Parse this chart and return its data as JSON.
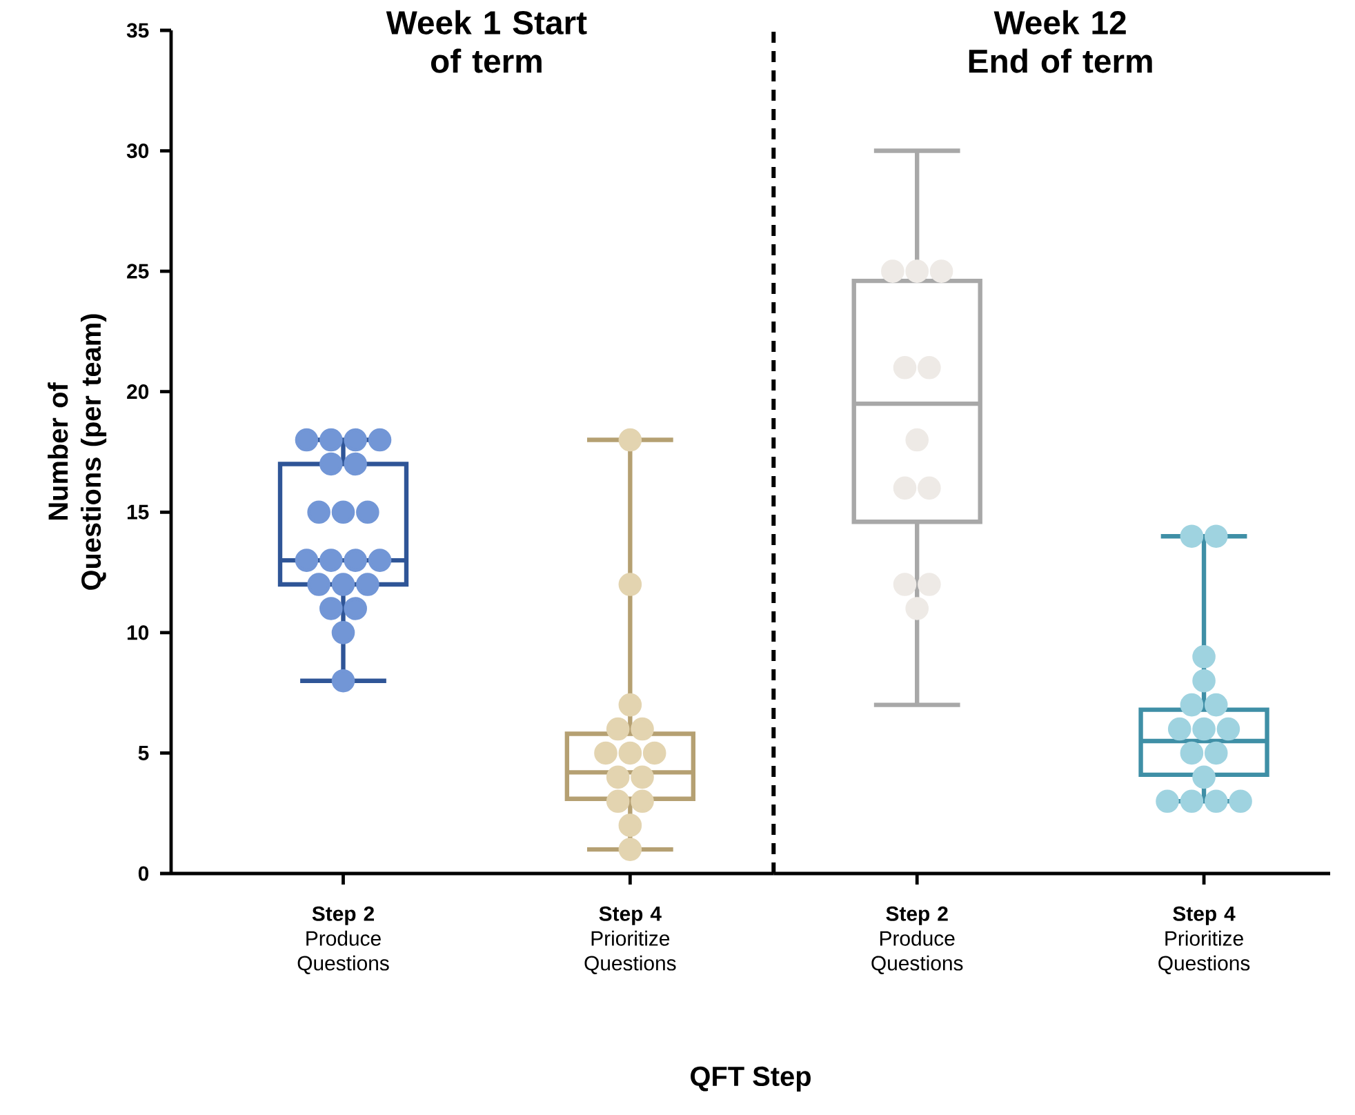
{
  "chart_data": [
    {
      "type": "box",
      "title": "Week 1 Start of term",
      "xlabel": "QFT Step",
      "ylabel": "Number of  Questions (per team)",
      "categories": [
        "**Step 2** Produce Questions",
        "**Step 4** Prioritize Questions"
      ],
      "boxes": [
        {
          "low": 8,
          "q1": 12,
          "median": 13,
          "q3": 17,
          "high": 18
        },
        {
          "low": 1,
          "q1": 3.1,
          "median": 4.2,
          "q3": 5.8,
          "high": 18
        }
      ],
      "colors": [
        "#2f5597",
        "#b5a072"
      ],
      "series": [
        {
          "type": "scatter",
          "color": "#7296d6",
          "x": [
            "**Step 2** Produce Questions",
            "**Step 2** Produce Questions",
            "**Step 2** Produce Questions",
            "**Step 2** Produce Questions",
            "**Step 2** Produce Questions",
            "**Step 2** Produce Questions",
            "**Step 2** Produce Questions",
            "**Step 2** Produce Questions",
            "**Step 2** Produce Questions",
            "**Step 2** Produce Questions",
            "**Step 2** Produce Questions",
            "**Step 2** Produce Questions",
            "**Step 2** Produce Questions",
            "**Step 2** Produce Questions",
            "**Step 2** Produce Questions",
            "**Step 2** Produce Questions",
            "**Step 2** Produce Questions",
            "**Step 2** Produce Questions",
            "**Step 2** Produce Questions",
            "**Step 2** Produce Questions"
          ],
          "values": [
            18,
            18,
            18,
            18,
            17,
            17,
            15,
            15,
            15,
            13,
            13,
            13,
            13,
            12,
            12,
            12,
            11,
            11,
            10,
            8
          ]
        },
        {
          "type": "scatter",
          "color": "#e3d4b0",
          "x": [
            "**Step 4** Prioritize Questions",
            "**Step 4** Prioritize Questions",
            "**Step 4** Prioritize Questions",
            "**Step 4** Prioritize Questions",
            "**Step 4** Prioritize Questions",
            "**Step 4** Prioritize Questions",
            "**Step 4** Prioritize Questions",
            "**Step 4** Prioritize Questions",
            "**Step 4** Prioritize Questions",
            "**Step 4** Prioritize Questions",
            "**Step 4** Prioritize Questions",
            "**Step 4** Prioritize Questions",
            "**Step 4** Prioritize Questions",
            "**Step 4** Prioritize Questions"
          ],
          "values": [
            18,
            12,
            7,
            6,
            6,
            5,
            5,
            5,
            4,
            4,
            3,
            3,
            2,
            1
          ]
        }
      ],
      "marker": "circle",
      "ylim": [
        0,
        35
      ],
      "yticks": [
        0,
        5,
        10,
        15,
        20,
        25,
        30,
        35
      ]
    },
    {
      "type": "box",
      "title": "Week 12 End of term",
      "categories": [
        "**Step 2** Produce Questions",
        "**Step 4** Prioritize Questions"
      ],
      "boxes": [
        {
          "low": 7,
          "q1": 14.6,
          "median": 19.5,
          "q3": 24.6,
          "high": 30
        },
        {
          "low": 3,
          "q1": 4.1,
          "median": 5.5,
          "q3": 6.8,
          "high": 14
        }
      ],
      "colors": [
        "#a8a8a8",
        "#3f8fa6"
      ],
      "series": [
        {
          "type": "scatter",
          "color": "#eeeae6",
          "x": [
            "**Step 2** Produce Questions",
            "**Step 2** Produce Questions",
            "**Step 2** Produce Questions",
            "**Step 2** Produce Questions",
            "**Step 2** Produce Questions",
            "**Step 2** Produce Questions",
            "**Step 2** Produce Questions",
            "**Step 2** Produce Questions",
            "**Step 2** Produce Questions",
            "**Step 2** Produce Questions",
            "**Step 2** Produce Questions"
          ],
          "values": [
            25,
            25,
            25,
            21,
            21,
            18,
            16,
            16,
            12,
            12,
            11
          ]
        },
        {
          "type": "scatter",
          "color": "#9fd3e0",
          "x": [
            "**Step 4** Prioritize Questions",
            "**Step 4** Prioritize Questions",
            "**Step 4** Prioritize Questions",
            "**Step 4** Prioritize Questions",
            "**Step 4** Prioritize Questions",
            "**Step 4** Prioritize Questions",
            "**Step 4** Prioritize Questions",
            "**Step 4** Prioritize Questions",
            "**Step 4** Prioritize Questions",
            "**Step 4** Prioritize Questions",
            "**Step 4** Prioritize Questions",
            "**Step 4** Prioritize Questions",
            "**Step 4** Prioritize Questions",
            "**Step 4** Prioritize Questions",
            "**Step 4** Prioritize Questions",
            "**Step 4** Prioritize Questions"
          ],
          "values": [
            14,
            14,
            9,
            8,
            7,
            7,
            6,
            6,
            6,
            5,
            5,
            4,
            3,
            3,
            3,
            3
          ]
        }
      ],
      "marker": "circle",
      "ylim": [
        0,
        35
      ],
      "yticks": [
        0,
        5,
        10,
        15,
        20,
        25,
        30,
        35
      ],
      "tick_labels": "x"
    }
  ]
}
